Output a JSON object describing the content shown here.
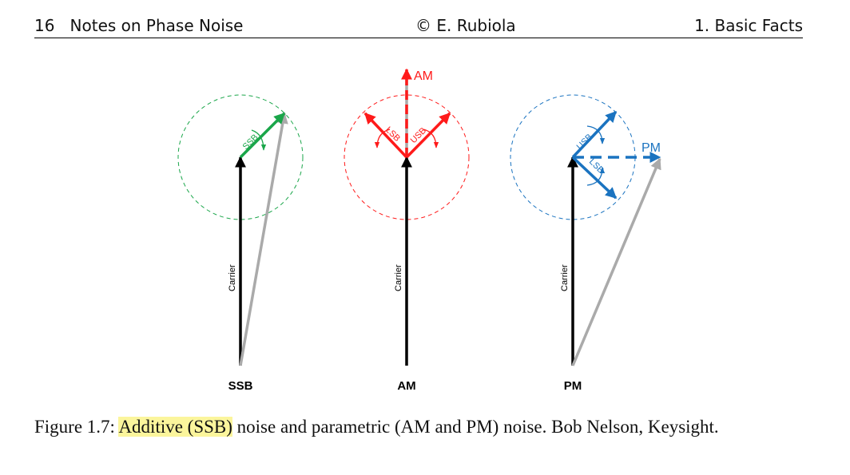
{
  "header": {
    "page_number": "16",
    "book_title": "Notes on Phase Noise",
    "author": "E. Rubiola",
    "copyright_symbol": "©",
    "section": "1. Basic Facts"
  },
  "figure": {
    "panels": [
      {
        "name": "SSB",
        "carrier_label": "Carrier",
        "sideband_labels": [
          "SSB"
        ],
        "color": "#1aa64a"
      },
      {
        "name": "AM",
        "carrier_label": "Carrier",
        "sideband_labels": [
          "LSB",
          "USB"
        ],
        "result_label": "AM",
        "color": "#ff1a1a"
      },
      {
        "name": "PM",
        "carrier_label": "Carrier",
        "sideband_labels": [
          "USB",
          "LSB"
        ],
        "result_label": "PM",
        "color": "#1a73c0"
      }
    ]
  },
  "caption": {
    "prefix": "Figure 1.7:",
    "highlighted": "Additive (SSB)",
    "rest": "noise and parametric (AM and PM) noise. Bob Nelson, Keysight."
  }
}
